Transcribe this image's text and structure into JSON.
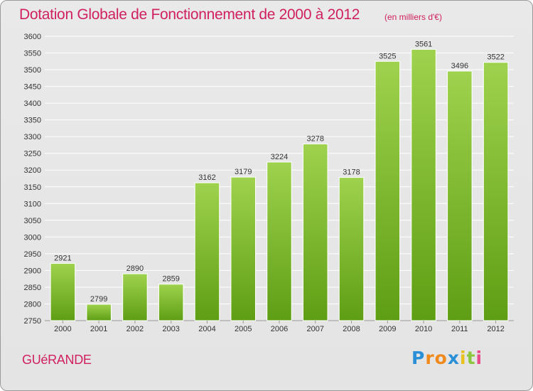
{
  "header": {
    "title": "Dotation Globale de Fonctionnement de 2000 à 2012",
    "subtitle": "(en milliers d'€)"
  },
  "footer": {
    "commune": "GUéRANDE",
    "logo": "Proxiti"
  },
  "colors": {
    "title": "#d02060",
    "bar_light": "#9fd24e",
    "bar_dark": "#5e9e14",
    "grid": "#ffffff",
    "axis_text": "#333333"
  },
  "chart_data": {
    "type": "bar",
    "title": "Dotation Globale de Fonctionnement de 2000 à 2012",
    "subtitle": "(en milliers d'€)",
    "categories": [
      "2000",
      "2001",
      "2002",
      "2003",
      "2004",
      "2005",
      "2006",
      "2007",
      "2008",
      "2009",
      "2010",
      "2011",
      "2012"
    ],
    "values": [
      2921,
      2799,
      2890,
      2859,
      3162,
      3179,
      3224,
      3278,
      3178,
      3525,
      3561,
      3496,
      3522
    ],
    "ylim": [
      2750,
      3600
    ],
    "ytick_step": 50,
    "xlabel": "",
    "ylabel": "",
    "grid": true,
    "legend": "none",
    "data_labels": true
  }
}
